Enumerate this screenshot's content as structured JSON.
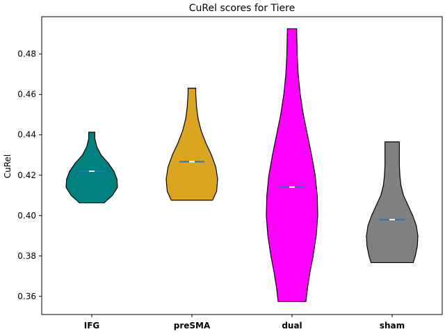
{
  "chart_data": {
    "type": "violin",
    "title": "CuRel scores for Tiere",
    "xlabel": "",
    "ylabel": "CuRel",
    "ylim": [
      0.351,
      0.4985
    ],
    "yticks": [
      0.36,
      0.38,
      0.4,
      0.42,
      0.44,
      0.46,
      0.48
    ],
    "ytick_labels": [
      "0.36",
      "0.38",
      "0.40",
      "0.42",
      "0.44",
      "0.46",
      "0.48"
    ],
    "categories": [
      "IFG",
      "preSMA",
      "dual",
      "sham"
    ],
    "grid": false,
    "violins": [
      {
        "category": "IFG",
        "color": "#008080",
        "min": 0.4063,
        "max": 0.4413,
        "median": 0.422,
        "mean": 0.422,
        "density_y": [
          0.4063,
          0.41,
          0.414,
          0.418,
          0.422,
          0.426,
          0.43,
          0.434,
          0.438,
          0.4413
        ],
        "density_halfwidth": [
          0.48,
          0.8,
          1.0,
          0.98,
          0.86,
          0.64,
          0.36,
          0.2,
          0.12,
          0.12
        ]
      },
      {
        "category": "preSMA",
        "color": "#DAA520",
        "min": 0.4076,
        "max": 0.4631,
        "median": 0.4267,
        "mean": 0.4267,
        "density_y": [
          0.4076,
          0.412,
          0.418,
          0.424,
          0.43,
          0.436,
          0.442,
          0.448,
          0.454,
          0.46,
          0.4631
        ],
        "density_halfwidth": [
          0.8,
          0.96,
          1.0,
          0.93,
          0.76,
          0.54,
          0.36,
          0.24,
          0.18,
          0.15,
          0.15
        ]
      },
      {
        "category": "dual",
        "color": "#FF00FF",
        "min": 0.3574,
        "max": 0.4925,
        "median": 0.4141,
        "mean": 0.4141,
        "density_y": [
          0.3574,
          0.364,
          0.372,
          0.38,
          0.39,
          0.4,
          0.41,
          0.42,
          0.43,
          0.44,
          0.45,
          0.46,
          0.47,
          0.48,
          0.4925
        ],
        "density_halfwidth": [
          0.54,
          0.6,
          0.7,
          0.82,
          0.94,
          1.0,
          0.98,
          0.9,
          0.76,
          0.6,
          0.44,
          0.32,
          0.24,
          0.2,
          0.18
        ]
      },
      {
        "category": "sham",
        "color": "#808080",
        "min": 0.3767,
        "max": 0.4365,
        "median": 0.398,
        "mean": 0.398,
        "density_y": [
          0.3767,
          0.38,
          0.385,
          0.39,
          0.395,
          0.4,
          0.405,
          0.41,
          0.415,
          0.42,
          0.425,
          0.43,
          0.4365
        ],
        "density_halfwidth": [
          0.82,
          0.9,
          0.98,
          1.0,
          0.94,
          0.8,
          0.62,
          0.44,
          0.34,
          0.3,
          0.28,
          0.28,
          0.28
        ]
      }
    ]
  }
}
